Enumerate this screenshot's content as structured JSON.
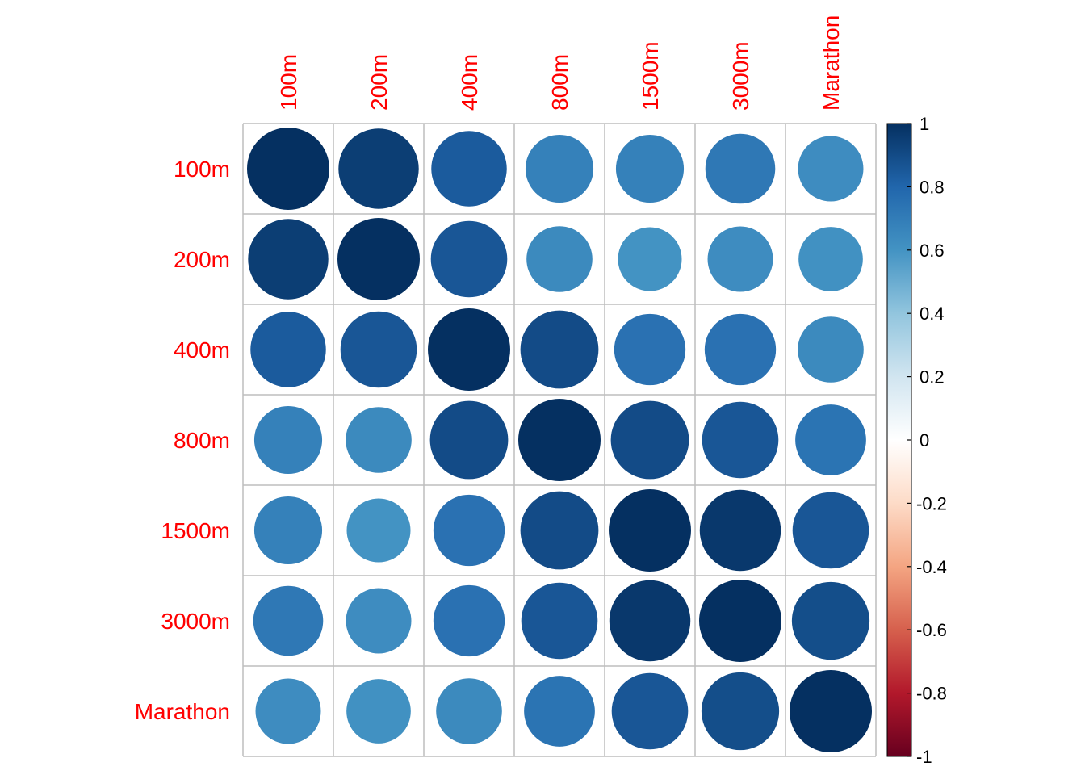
{
  "chart_data": {
    "type": "heatmap",
    "subtype": "correlation-circle-matrix",
    "variables": [
      "100m",
      "200m",
      "400m",
      "800m",
      "1500m",
      "3000m",
      "Marathon"
    ],
    "matrix": [
      [
        1.0,
        0.95,
        0.84,
        0.68,
        0.68,
        0.72,
        0.63
      ],
      [
        0.95,
        1.0,
        0.86,
        0.64,
        0.6,
        0.63,
        0.61
      ],
      [
        0.84,
        0.86,
        1.0,
        0.9,
        0.75,
        0.75,
        0.64
      ],
      [
        0.68,
        0.64,
        0.9,
        1.0,
        0.9,
        0.86,
        0.74
      ],
      [
        0.68,
        0.6,
        0.75,
        0.9,
        1.0,
        0.97,
        0.86
      ],
      [
        0.72,
        0.63,
        0.75,
        0.86,
        0.97,
        1.0,
        0.89
      ],
      [
        0.63,
        0.61,
        0.64,
        0.74,
        0.86,
        0.89,
        1.0
      ]
    ],
    "label_color": "#FF0000",
    "colorbar": {
      "range": [
        -1,
        1
      ],
      "ticks": [
        "1",
        "0.8",
        "0.6",
        "0.4",
        "0.2",
        "0",
        "-0.2",
        "-0.4",
        "-0.6",
        "-0.8",
        "-1"
      ],
      "tick_values": [
        1,
        0.8,
        0.6,
        0.4,
        0.2,
        0,
        -0.2,
        -0.4,
        -0.6,
        -0.8,
        -1
      ],
      "palette": [
        "#67001F",
        "#B2182B",
        "#D6604D",
        "#F4A582",
        "#FDDBC7",
        "#FFFFFF",
        "#D1E5F0",
        "#92C5DE",
        "#4393C3",
        "#2166AC",
        "#053061"
      ]
    },
    "grid": true,
    "title": "",
    "xlabel": "",
    "ylabel": ""
  }
}
